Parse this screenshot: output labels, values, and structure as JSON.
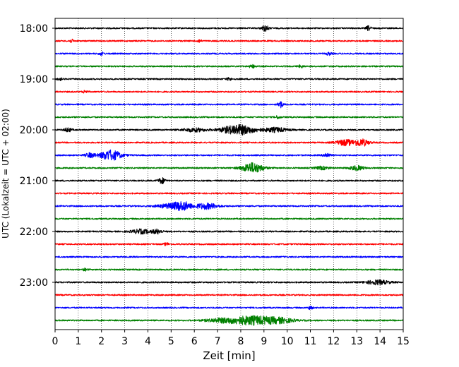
{
  "chart_data": {
    "type": "line",
    "xlabel": "Zeit  [min]",
    "ylabel": "UTC (Lokalzeit = UTC + 02:00)",
    "xlim": [
      0,
      15
    ],
    "x_ticks": [
      "0",
      "1",
      "2",
      "3",
      "4",
      "5",
      "6",
      "7",
      "8",
      "9",
      "10",
      "11",
      "12",
      "13",
      "14",
      "15"
    ],
    "y_ticks": [
      "18:00",
      "19:00",
      "20:00",
      "21:00",
      "22:00",
      "23:00"
    ],
    "grid": "vertical dotted lines at each minute",
    "trace_colors": [
      "#000000",
      "#ff0000",
      "#0000ff",
      "#008000"
    ],
    "traces": [
      {
        "start": "18:00",
        "color": "#000000",
        "events": [
          {
            "t": 9.05,
            "amp": 4,
            "w": 0.15
          },
          {
            "t": 13.5,
            "amp": 3,
            "w": 0.1
          }
        ]
      },
      {
        "start": "18:15",
        "color": "#ff0000",
        "events": [
          {
            "t": 0.7,
            "amp": 2,
            "w": 0.1
          },
          {
            "t": 6.2,
            "amp": 2,
            "w": 0.1
          }
        ]
      },
      {
        "start": "18:30",
        "color": "#0000ff",
        "events": [
          {
            "t": 2.0,
            "amp": 2,
            "w": 0.1
          },
          {
            "t": 11.8,
            "amp": 2,
            "w": 0.1
          }
        ]
      },
      {
        "start": "18:45",
        "color": "#008000",
        "events": [
          {
            "t": 8.5,
            "amp": 2,
            "w": 0.15
          },
          {
            "t": 10.6,
            "amp": 2,
            "w": 0.1
          }
        ]
      },
      {
        "start": "19:00",
        "color": "#000000",
        "events": [
          {
            "t": 0.2,
            "amp": 2,
            "w": 0.1
          },
          {
            "t": 7.5,
            "amp": 2,
            "w": 0.1
          }
        ]
      },
      {
        "start": "19:15",
        "color": "#ff0000",
        "events": [
          {
            "t": 1.3,
            "amp": 2,
            "w": 0.1
          }
        ]
      },
      {
        "start": "19:30",
        "color": "#0000ff",
        "events": [
          {
            "t": 9.7,
            "amp": 5,
            "w": 0.1
          }
        ]
      },
      {
        "start": "19:45",
        "color": "#008000",
        "events": [
          {
            "t": 9.6,
            "amp": 2,
            "w": 0.1
          }
        ]
      },
      {
        "start": "20:00",
        "color": "#000000",
        "events": [
          {
            "t": 0.55,
            "amp": 3,
            "w": 0.15
          },
          {
            "t": 7.9,
            "amp": 7,
            "w": 0.7
          },
          {
            "t": 9.5,
            "amp": 3,
            "w": 0.5
          },
          {
            "t": 6.0,
            "amp": 2.5,
            "w": 0.5
          }
        ]
      },
      {
        "start": "20:15",
        "color": "#ff0000",
        "events": [
          {
            "t": 12.5,
            "amp": 4,
            "w": 0.4
          },
          {
            "t": 13.2,
            "amp": 5,
            "w": 0.3
          }
        ]
      },
      {
        "start": "20:30",
        "color": "#0000ff",
        "events": [
          {
            "t": 1.5,
            "amp": 3,
            "w": 0.2
          },
          {
            "t": 2.4,
            "amp": 7,
            "w": 0.45
          },
          {
            "t": 11.7,
            "amp": 3,
            "w": 0.15
          }
        ]
      },
      {
        "start": "20:45",
        "color": "#008000",
        "events": [
          {
            "t": 8.5,
            "amp": 7,
            "w": 0.45
          },
          {
            "t": 11.5,
            "amp": 2,
            "w": 0.3
          },
          {
            "t": 13.0,
            "amp": 3,
            "w": 0.3
          }
        ]
      },
      {
        "start": "21:00",
        "color": "#000000",
        "events": [
          {
            "t": 4.6,
            "amp": 4,
            "w": 0.15
          }
        ]
      },
      {
        "start": "21:15",
        "color": "#ff0000",
        "events": []
      },
      {
        "start": "21:30",
        "color": "#0000ff",
        "events": [
          {
            "t": 5.0,
            "amp": 3,
            "w": 0.6
          },
          {
            "t": 5.5,
            "amp": 5,
            "w": 0.35
          },
          {
            "t": 6.5,
            "amp": 4,
            "w": 0.5
          }
        ]
      },
      {
        "start": "21:45",
        "color": "#008000",
        "events": []
      },
      {
        "start": "22:00",
        "color": "#000000",
        "events": [
          {
            "t": 3.7,
            "amp": 3,
            "w": 0.4
          },
          {
            "t": 4.4,
            "amp": 3,
            "w": 0.2
          }
        ]
      },
      {
        "start": "22:15",
        "color": "#ff0000",
        "events": [
          {
            "t": 4.8,
            "amp": 2,
            "w": 0.1
          }
        ]
      },
      {
        "start": "22:30",
        "color": "#0000ff",
        "events": []
      },
      {
        "start": "22:45",
        "color": "#008000",
        "events": [
          {
            "t": 1.3,
            "amp": 1.5,
            "w": 0.1
          }
        ]
      },
      {
        "start": "23:00",
        "color": "#000000",
        "events": [
          {
            "t": 13.9,
            "amp": 3,
            "w": 0.5
          }
        ]
      },
      {
        "start": "23:15",
        "color": "#ff0000",
        "events": []
      },
      {
        "start": "23:30",
        "color": "#0000ff",
        "events": [
          {
            "t": 11.0,
            "amp": 2,
            "w": 0.1
          }
        ]
      },
      {
        "start": "23:45",
        "color": "#008000",
        "events": [
          {
            "t": 8.5,
            "amp": 6,
            "w": 0.9
          },
          {
            "t": 9.7,
            "amp": 3,
            "w": 0.6
          },
          {
            "t": 7.2,
            "amp": 2.5,
            "w": 0.7
          }
        ]
      }
    ]
  }
}
